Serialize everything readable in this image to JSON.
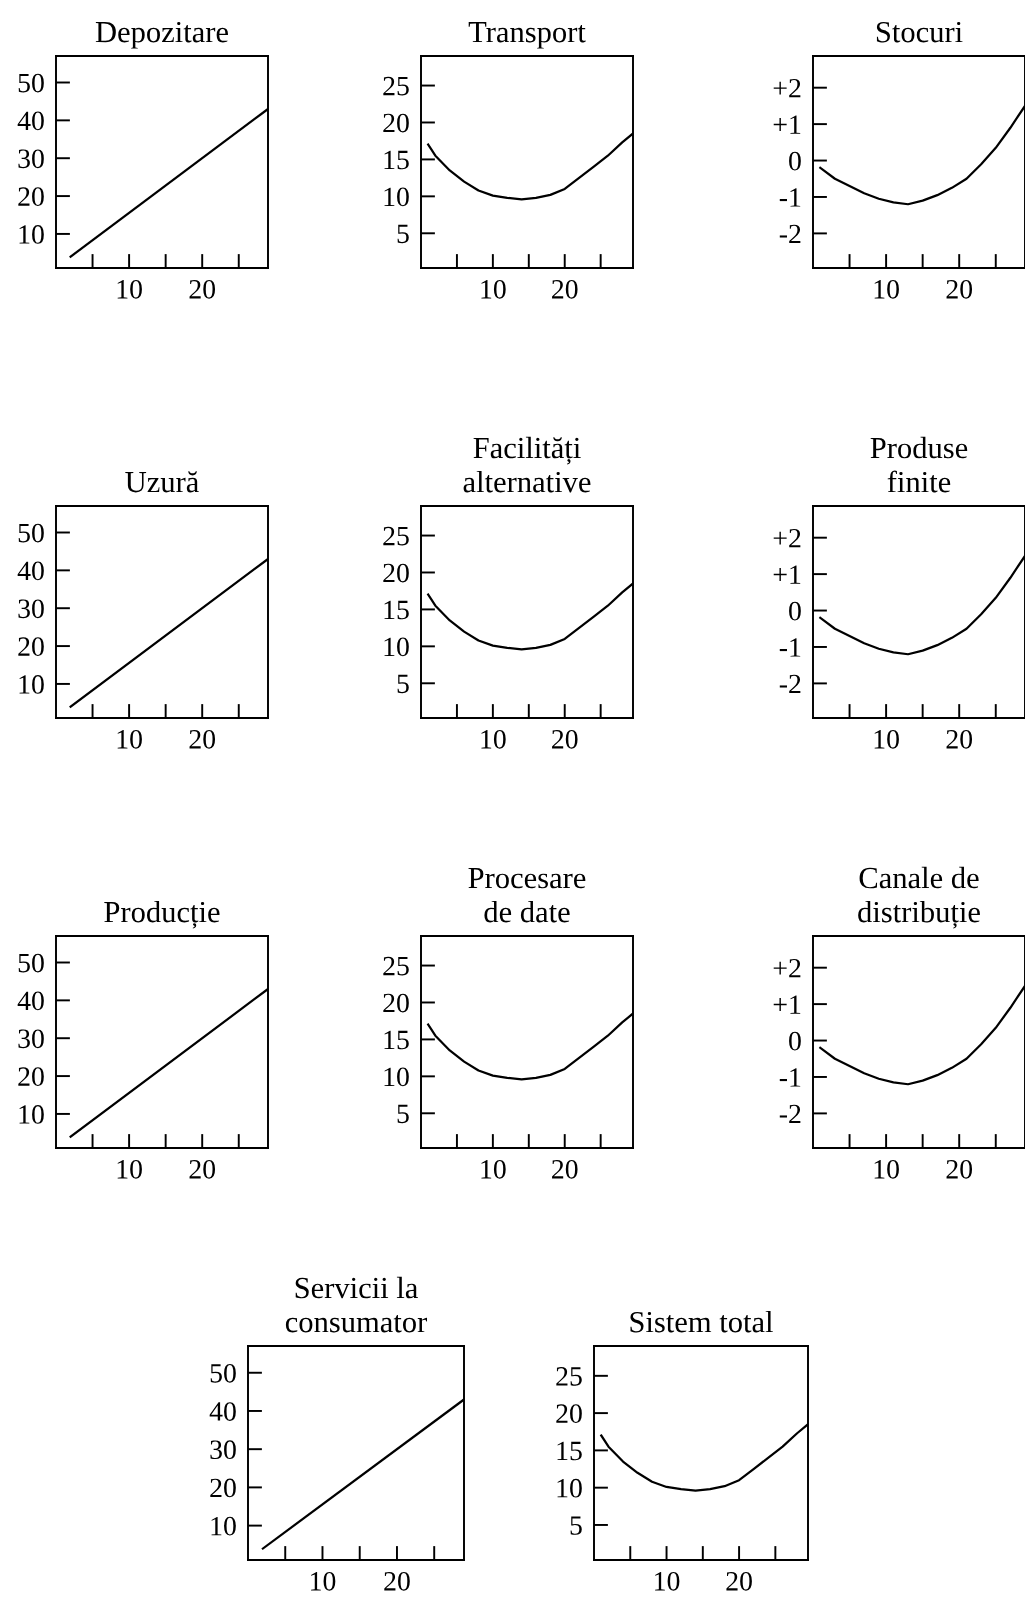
{
  "chart_data": [
    {
      "type": "line",
      "title": "Depozitare",
      "x": [
        2,
        29
      ],
      "values": [
        4,
        43
      ],
      "color": "#000000",
      "xlim": [
        0,
        29
      ],
      "ylim": [
        1,
        57
      ],
      "xticks": [
        {
          "value": 5,
          "label": null
        },
        10,
        {
          "value": 15,
          "label": null
        },
        20,
        {
          "value": 25,
          "label": null
        }
      ],
      "yticks": [
        10,
        20,
        30,
        40,
        50
      ],
      "grid": false
    },
    {
      "type": "line",
      "title": "Transport",
      "x": [
        1,
        2,
        4,
        6,
        8,
        10,
        12,
        14,
        16,
        18,
        20,
        22,
        24,
        26,
        28,
        29.5
      ],
      "values": [
        17,
        15.5,
        13.5,
        12,
        10.8,
        10.1,
        9.8,
        9.6,
        9.8,
        10.2,
        11,
        12.5,
        14,
        15.5,
        17.3,
        18.5
      ],
      "color": "#000000",
      "xlim": [
        0,
        29.5
      ],
      "ylim": [
        0.3,
        29
      ],
      "xticks": [
        {
          "value": 5,
          "label": null
        },
        10,
        {
          "value": 15,
          "label": null
        },
        20,
        {
          "value": 25,
          "label": null
        }
      ],
      "yticks": [
        5,
        10,
        15,
        20,
        25
      ],
      "grid": false
    },
    {
      "type": "line",
      "title": "Stocuri",
      "x": [
        1,
        3,
        5,
        7,
        9,
        11,
        13,
        15,
        17,
        19,
        21,
        23,
        25,
        27,
        29
      ],
      "values": [
        -0.2,
        -0.5,
        -0.7,
        -0.9,
        -1.05,
        -1.15,
        -1.2,
        -1.1,
        -0.95,
        -0.75,
        -0.5,
        -0.1,
        0.35,
        0.9,
        1.5
      ],
      "color": "#000000",
      "xlim": [
        0,
        29
      ],
      "ylim": [
        -2.95,
        2.87
      ],
      "xticks": [
        {
          "value": 5,
          "label": null
        },
        10,
        {
          "value": 15,
          "label": null
        },
        20,
        {
          "value": 25,
          "label": null
        }
      ],
      "yticks": [
        {
          "value": -2,
          "label": "-2"
        },
        {
          "value": -1,
          "label": "-1"
        },
        0,
        {
          "value": 1,
          "label": "+1"
        },
        {
          "value": 2,
          "label": "+2"
        }
      ],
      "grid": false
    },
    {
      "type": "line",
      "title": "Uzură",
      "x": [
        2,
        29
      ],
      "values": [
        4,
        43
      ],
      "color": "#000000",
      "xlim": [
        0,
        29
      ],
      "ylim": [
        1,
        57
      ],
      "xticks": [
        {
          "value": 5,
          "label": null
        },
        10,
        {
          "value": 15,
          "label": null
        },
        20,
        {
          "value": 25,
          "label": null
        }
      ],
      "yticks": [
        10,
        20,
        30,
        40,
        50
      ],
      "grid": false
    },
    {
      "type": "line",
      "title": "Facilități\nalternative",
      "x": [
        1,
        2,
        4,
        6,
        8,
        10,
        12,
        14,
        16,
        18,
        20,
        22,
        24,
        26,
        28,
        29.5
      ],
      "values": [
        17,
        15.5,
        13.5,
        12,
        10.8,
        10.1,
        9.8,
        9.6,
        9.8,
        10.2,
        11,
        12.5,
        14,
        15.5,
        17.3,
        18.5
      ],
      "color": "#000000",
      "xlim": [
        0,
        29.5
      ],
      "ylim": [
        0.3,
        29
      ],
      "xticks": [
        {
          "value": 5,
          "label": null
        },
        10,
        {
          "value": 15,
          "label": null
        },
        20,
        {
          "value": 25,
          "label": null
        }
      ],
      "yticks": [
        5,
        10,
        15,
        20,
        25
      ],
      "grid": false
    },
    {
      "type": "line",
      "title": "Produse\nfinite",
      "x": [
        1,
        3,
        5,
        7,
        9,
        11,
        13,
        15,
        17,
        19,
        21,
        23,
        25,
        27,
        29
      ],
      "values": [
        -0.2,
        -0.5,
        -0.7,
        -0.9,
        -1.05,
        -1.15,
        -1.2,
        -1.1,
        -0.95,
        -0.75,
        -0.5,
        -0.1,
        0.35,
        0.9,
        1.5
      ],
      "color": "#000000",
      "xlim": [
        0,
        29
      ],
      "ylim": [
        -2.95,
        2.87
      ],
      "xticks": [
        {
          "value": 5,
          "label": null
        },
        10,
        {
          "value": 15,
          "label": null
        },
        20,
        {
          "value": 25,
          "label": null
        }
      ],
      "yticks": [
        {
          "value": -2,
          "label": "-2"
        },
        {
          "value": -1,
          "label": "-1"
        },
        0,
        {
          "value": 1,
          "label": "+1"
        },
        {
          "value": 2,
          "label": "+2"
        }
      ],
      "grid": false
    },
    {
      "type": "line",
      "title": "Producție",
      "x": [
        2,
        29
      ],
      "values": [
        4,
        43
      ],
      "color": "#000000",
      "xlim": [
        0,
        29
      ],
      "ylim": [
        1,
        57
      ],
      "xticks": [
        {
          "value": 5,
          "label": null
        },
        10,
        {
          "value": 15,
          "label": null
        },
        20,
        {
          "value": 25,
          "label": null
        }
      ],
      "yticks": [
        10,
        20,
        30,
        40,
        50
      ],
      "grid": false
    },
    {
      "type": "line",
      "title": "Procesare\nde date",
      "x": [
        1,
        2,
        4,
        6,
        8,
        10,
        12,
        14,
        16,
        18,
        20,
        22,
        24,
        26,
        28,
        29.5
      ],
      "values": [
        17,
        15.5,
        13.5,
        12,
        10.8,
        10.1,
        9.8,
        9.6,
        9.8,
        10.2,
        11,
        12.5,
        14,
        15.5,
        17.3,
        18.5
      ],
      "color": "#000000",
      "xlim": [
        0,
        29.5
      ],
      "ylim": [
        0.3,
        29
      ],
      "xticks": [
        {
          "value": 5,
          "label": null
        },
        10,
        {
          "value": 15,
          "label": null
        },
        20,
        {
          "value": 25,
          "label": null
        }
      ],
      "yticks": [
        5,
        10,
        15,
        20,
        25
      ],
      "grid": false
    },
    {
      "type": "line",
      "title": "Canale de\ndistribuție",
      "x": [
        1,
        3,
        5,
        7,
        9,
        11,
        13,
        15,
        17,
        19,
        21,
        23,
        25,
        27,
        29
      ],
      "values": [
        -0.2,
        -0.5,
        -0.7,
        -0.9,
        -1.05,
        -1.15,
        -1.2,
        -1.1,
        -0.95,
        -0.75,
        -0.5,
        -0.1,
        0.35,
        0.9,
        1.5
      ],
      "color": "#000000",
      "xlim": [
        0,
        29
      ],
      "ylim": [
        -2.95,
        2.87
      ],
      "xticks": [
        {
          "value": 5,
          "label": null
        },
        10,
        {
          "value": 15,
          "label": null
        },
        20,
        {
          "value": 25,
          "label": null
        }
      ],
      "yticks": [
        {
          "value": -2,
          "label": "-2"
        },
        {
          "value": -1,
          "label": "-1"
        },
        0,
        {
          "value": 1,
          "label": "+1"
        },
        {
          "value": 2,
          "label": "+2"
        }
      ],
      "grid": false
    },
    {
      "type": "line",
      "title": "Servicii la\nconsumator",
      "x": [
        2,
        29
      ],
      "values": [
        4,
        43
      ],
      "color": "#000000",
      "xlim": [
        0,
        29
      ],
      "ylim": [
        1,
        57
      ],
      "xticks": [
        {
          "value": 5,
          "label": null
        },
        10,
        {
          "value": 15,
          "label": null
        },
        20,
        {
          "value": 25,
          "label": null
        }
      ],
      "yticks": [
        10,
        20,
        30,
        40,
        50
      ],
      "grid": false
    },
    {
      "type": "line",
      "title": "Sistem total",
      "x": [
        1,
        2,
        4,
        6,
        8,
        10,
        12,
        14,
        16,
        18,
        20,
        22,
        24,
        26,
        28,
        29.5
      ],
      "values": [
        17,
        15.5,
        13.5,
        12,
        10.8,
        10.1,
        9.8,
        9.6,
        9.8,
        10.2,
        11,
        12.5,
        14,
        15.5,
        17.3,
        18.5
      ],
      "color": "#000000",
      "xlim": [
        0,
        29.5
      ],
      "ylim": [
        0.3,
        29
      ],
      "xticks": [
        {
          "value": 5,
          "label": null
        },
        10,
        {
          "value": 15,
          "label": null
        },
        20,
        {
          "value": 25,
          "label": null
        }
      ],
      "yticks": [
        5,
        10,
        15,
        20,
        25
      ],
      "grid": false
    }
  ]
}
